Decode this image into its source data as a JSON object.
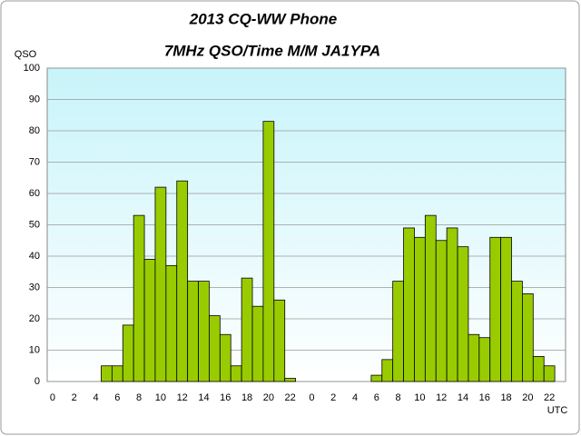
{
  "chart_data": {
    "type": "bar",
    "title": "2013  CQ-WW Phone",
    "subtitle": "7MHz QSO/Time  M/M JA1YPA",
    "y_label": "QSO",
    "x_label": "UTC",
    "categories": [
      "0",
      null,
      "2",
      null,
      "4",
      null,
      "6",
      null,
      "8",
      null,
      "10",
      null,
      "12",
      null,
      "14",
      null,
      "16",
      null,
      "18",
      null,
      "20",
      null,
      "22",
      null,
      "0",
      null,
      "2",
      null,
      "4",
      null,
      "6",
      null,
      "8",
      null,
      "10",
      null,
      "12",
      null,
      "14",
      null,
      "16",
      null,
      "18",
      null,
      "20",
      null,
      "22",
      null
    ],
    "values": [
      0,
      0,
      0,
      0,
      0,
      5,
      5,
      18,
      53,
      39,
      62,
      37,
      64,
      32,
      32,
      21,
      15,
      5,
      33,
      24,
      83,
      26,
      1,
      0,
      0,
      0,
      0,
      0,
      0,
      0,
      2,
      7,
      32,
      49,
      46,
      53,
      45,
      49,
      43,
      15,
      14,
      46,
      46,
      32,
      28,
      8,
      5,
      0
    ],
    "color": "#99cc00",
    "ylim": [
      0,
      100
    ],
    "yticks": [
      0,
      10,
      20,
      30,
      40,
      50,
      60,
      70,
      80,
      90,
      100
    ],
    "grid": true
  }
}
